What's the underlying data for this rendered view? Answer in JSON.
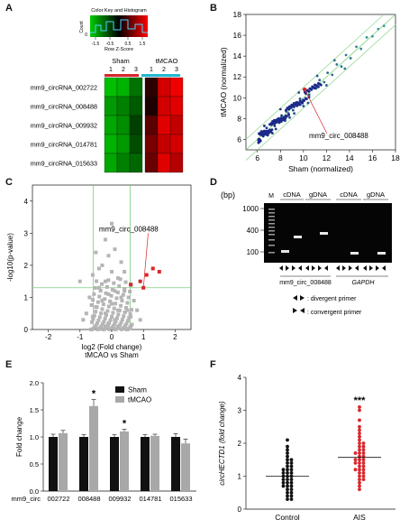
{
  "panels": {
    "a": "A",
    "b": "B",
    "c": "C",
    "d": "D",
    "e": "E",
    "f": "F"
  },
  "colors": {
    "sham": "#111111",
    "tmcao": "#a8a8a8",
    "control": "#111111",
    "ais": "#d9262b",
    "sham_bar_group": "#d9262b",
    "tmcao_bar_group": "#22b8d2",
    "scatter_line": "#7ccf7c"
  },
  "heatmap": {
    "key_title": "Color Key and Histogram",
    "key_ylabel": "Count",
    "key_xlabel": "Row Z-Score",
    "key_ticks": [
      "-1.5",
      "-0.5",
      "0.5",
      "1.5"
    ],
    "key_count_ticks": [
      "0"
    ],
    "groups": [
      "Sham",
      "tMCAO"
    ],
    "columns": [
      "1",
      "2",
      "3",
      "1",
      "2",
      "3"
    ],
    "rows": [
      "mm9_circRNA_002722",
      "mm9_circRNA_008488",
      "mm9_circRNA_009932",
      "mm9_circRNA_014781",
      "mm9_circRNA_015633"
    ],
    "z": [
      [
        -1.5,
        -1.4,
        -0.9,
        0.3,
        1.4,
        1.6
      ],
      [
        -1.2,
        -1.0,
        -0.7,
        0.2,
        1.4,
        1.5
      ],
      [
        -1.3,
        -1.1,
        -0.5,
        0.6,
        1.5,
        1.3
      ],
      [
        -1.4,
        -1.2,
        -0.6,
        0.8,
        1.3,
        1.4
      ],
      [
        -1.3,
        -1.0,
        -0.8,
        0.7,
        1.5,
        1.2
      ]
    ]
  },
  "chart_data": [
    {
      "panel": "B",
      "type": "scatter",
      "xlabel": "Sham (normalized)",
      "ylabel": "tMCAO (normalized)",
      "xlim": [
        5,
        18
      ],
      "ylim": [
        5,
        18
      ],
      "xticks": [
        "6",
        "8",
        "10",
        "12",
        "14",
        "16",
        "18"
      ],
      "yticks": [
        "6",
        "8",
        "10",
        "12",
        "14",
        "16",
        "18"
      ],
      "annotation": "mm9_circ_008488",
      "highlight": {
        "x": 10.1,
        "y": 10.8
      },
      "points": [
        [
          6.2,
          6.5
        ],
        [
          6.5,
          6.3
        ],
        [
          6.8,
          7.1
        ],
        [
          7.0,
          6.8
        ],
        [
          7.2,
          7.4
        ],
        [
          7.5,
          7.3
        ],
        [
          7.7,
          7.9
        ],
        [
          7.9,
          7.6
        ],
        [
          8.1,
          8.3
        ],
        [
          8.3,
          8.0
        ],
        [
          8.5,
          8.7
        ],
        [
          8.7,
          8.5
        ],
        [
          8.9,
          9.1
        ],
        [
          9.1,
          8.8
        ],
        [
          9.3,
          9.5
        ],
        [
          9.5,
          9.3
        ],
        [
          9.7,
          9.9
        ],
        [
          9.9,
          9.6
        ],
        [
          10.2,
          10.4
        ],
        [
          10.5,
          10.3
        ],
        [
          10.8,
          11.0
        ],
        [
          11.1,
          10.9
        ],
        [
          11.4,
          11.7
        ],
        [
          11.8,
          11.5
        ],
        [
          12.1,
          12.4
        ],
        [
          12.5,
          12.2
        ],
        [
          12.9,
          13.2
        ],
        [
          13.3,
          13.0
        ],
        [
          13.7,
          14.1
        ],
        [
          14.1,
          13.8
        ],
        [
          14.6,
          14.9
        ],
        [
          15.0,
          14.7
        ],
        [
          15.5,
          15.8
        ],
        [
          16.0,
          15.9
        ],
        [
          16.5,
          16.6
        ],
        [
          17.0,
          16.9
        ],
        [
          6.6,
          7.3
        ],
        [
          7.3,
          6.6
        ],
        [
          8.0,
          8.9
        ],
        [
          8.8,
          8.1
        ],
        [
          9.6,
          10.5
        ],
        [
          10.4,
          9.5
        ],
        [
          11.2,
          12.1
        ],
        [
          12.0,
          11.2
        ],
        [
          12.7,
          13.6
        ],
        [
          13.6,
          12.8
        ],
        [
          6.9,
          6.4
        ],
        [
          7.6,
          7.0
        ],
        [
          8.4,
          7.8
        ],
        [
          9.2,
          8.5
        ],
        [
          10.0,
          9.2
        ]
      ]
    },
    {
      "panel": "C",
      "type": "scatter",
      "xlabel": "log2 (Fold change)",
      "xlabel_sub": "tMCAO vs Sham",
      "ylabel": "-log10(p-value)",
      "xlim": [
        -2.5,
        2.5
      ],
      "ylim": [
        0,
        4.5
      ],
      "xticks": [
        "-2",
        "-1",
        "0",
        "1",
        "2"
      ],
      "yticks": [
        "0",
        "1",
        "2",
        "3",
        "4"
      ],
      "annotation": "mm9_circ_008488",
      "points_gray": [
        [
          -0.1,
          0.2
        ],
        [
          0.1,
          0.3
        ],
        [
          -0.2,
          0.5
        ],
        [
          0.2,
          0.6
        ],
        [
          0.0,
          0.8
        ],
        [
          -0.3,
          0.9
        ],
        [
          0.3,
          1.0
        ],
        [
          -0.1,
          1.1
        ],
        [
          0.1,
          1.2
        ],
        [
          -0.4,
          1.3
        ],
        [
          0.4,
          1.2
        ],
        [
          -0.2,
          1.5
        ],
        [
          0.2,
          1.6
        ],
        [
          0.0,
          1.8
        ],
        [
          -0.5,
          0.7
        ],
        [
          0.5,
          0.6
        ],
        [
          -0.6,
          0.4
        ],
        [
          0.6,
          0.4
        ],
        [
          -0.3,
          2.0
        ],
        [
          0.3,
          2.1
        ],
        [
          -0.1,
          2.3
        ],
        [
          0.1,
          2.5
        ],
        [
          -0.7,
          1.0
        ],
        [
          0.7,
          0.9
        ],
        [
          -0.8,
          0.5
        ],
        [
          0.8,
          0.6
        ],
        [
          -0.2,
          2.8
        ],
        [
          -0.9,
          0.3
        ],
        [
          0.9,
          0.3
        ],
        [
          0.0,
          3.3
        ],
        [
          -0.4,
          1.9
        ],
        [
          0.4,
          1.8
        ],
        [
          -1.0,
          1.5
        ],
        [
          -0.6,
          1.7
        ],
        [
          0.6,
          1.4
        ],
        [
          -0.5,
          2.4
        ],
        [
          0.2,
          0.1
        ],
        [
          -0.2,
          0.1
        ]
      ],
      "points_red": [
        [
          0.6,
          1.4
        ],
        [
          0.9,
          1.5
        ],
        [
          1.1,
          1.7
        ],
        [
          1.3,
          1.9
        ],
        [
          1.5,
          1.8
        ],
        [
          1.0,
          1.3
        ]
      ],
      "threshold_x": [
        -0.58,
        0.58
      ],
      "threshold_y": 1.3
    },
    {
      "panel": "E",
      "type": "bar",
      "ylabel": "Fold change",
      "category_prefix": "mm9_circ",
      "categories": [
        "002722",
        "008488",
        "009932",
        "014781",
        "015633"
      ],
      "ylim": [
        0,
        2.0
      ],
      "yticks": [
        "0.0",
        "0.5",
        "1.0",
        "1.5",
        "2.0"
      ],
      "series": [
        {
          "name": "Sham",
          "values": [
            1.0,
            1.0,
            1.0,
            1.0,
            1.0
          ],
          "err": [
            0.05,
            0.04,
            0.04,
            0.04,
            0.06
          ]
        },
        {
          "name": "tMCAO",
          "values": [
            1.07,
            1.57,
            1.1,
            1.02,
            0.88
          ],
          "err": [
            0.05,
            0.12,
            0.04,
            0.03,
            0.08
          ]
        }
      ],
      "significance": [
        "",
        "*",
        "*",
        "",
        ""
      ]
    },
    {
      "panel": "F",
      "type": "scatter",
      "ylabel": "circHECTD1 (fold change)",
      "categories": [
        "Control",
        "AIS"
      ],
      "ylim": [
        0,
        4
      ],
      "yticks": [
        "0",
        "1",
        "2",
        "3",
        "4"
      ],
      "means": [
        1.0,
        1.57
      ],
      "significance": "***",
      "groups": [
        {
          "name": "Control",
          "values": [
            2.1,
            1.9,
            1.8,
            1.7,
            1.6,
            1.5,
            1.5,
            1.4,
            1.4,
            1.3,
            1.3,
            1.2,
            1.2,
            1.2,
            1.1,
            1.1,
            1.1,
            1.0,
            1.0,
            1.0,
            0.9,
            0.9,
            0.9,
            0.8,
            0.8,
            0.8,
            0.7,
            0.7,
            0.7,
            0.6,
            0.6,
            0.5,
            0.5,
            0.4,
            0.4,
            0.3,
            0.3
          ]
        },
        {
          "name": "AIS",
          "values": [
            3.1,
            3.0,
            2.7,
            2.5,
            2.4,
            2.3,
            2.2,
            2.1,
            2.0,
            2.0,
            1.9,
            1.9,
            1.8,
            1.8,
            1.7,
            1.7,
            1.7,
            1.6,
            1.6,
            1.5,
            1.5,
            1.5,
            1.4,
            1.4,
            1.4,
            1.3,
            1.3,
            1.2,
            1.2,
            1.2,
            1.1,
            1.1,
            1.0,
            1.0,
            0.9,
            0.9,
            0.8,
            0.7,
            0.6
          ]
        }
      ]
    }
  ],
  "gel": {
    "unit": "(bp)",
    "marker_label": "M",
    "size_labels": [
      "1000",
      "400",
      "100"
    ],
    "lane_labels": [
      "cDNA",
      "gDNA",
      "cDNA",
      "gDNA"
    ],
    "gene_labels": [
      "mm9_circ_008488",
      "GAPDH"
    ],
    "legend_divergent": ": divergent primer",
    "legend_convergent": ": convergent primer"
  },
  "legend_e": {
    "sham": "Sham",
    "tmcao": "tMCAO"
  }
}
